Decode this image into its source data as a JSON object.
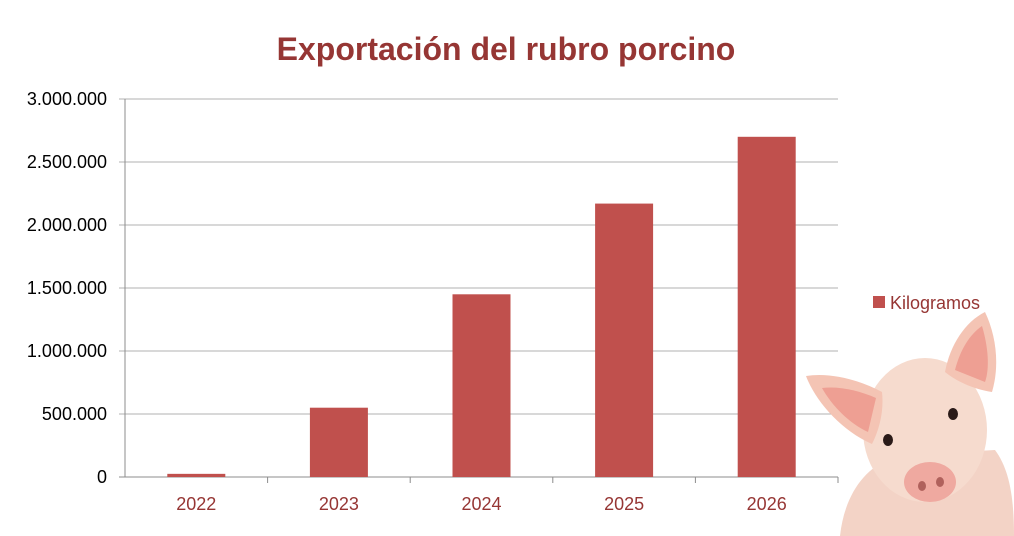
{
  "chart_data": {
    "type": "bar",
    "title": "Exportación del rubro porcino",
    "categories": [
      "2022",
      "2023",
      "2024",
      "2025",
      "2026"
    ],
    "series": [
      {
        "name": "Kilogramos",
        "values": [
          25000,
          550000,
          1450000,
          2170000,
          2700000
        ]
      }
    ],
    "ylim": [
      0,
      3000000
    ],
    "yticks": [
      0,
      500000,
      1000000,
      1500000,
      2000000,
      2500000,
      3000000
    ],
    "ytick_labels": [
      "0",
      "500.000",
      "1.000.000",
      "1.500.000",
      "2.000.000",
      "2.500.000",
      "3.000.000"
    ],
    "xlabel": "",
    "ylabel": "",
    "grid": true,
    "legend": "right",
    "colors": {
      "bar": "#C0504D",
      "title": "#963634",
      "category_label": "#963634"
    }
  },
  "illustration": {
    "icon": "pig-icon"
  }
}
